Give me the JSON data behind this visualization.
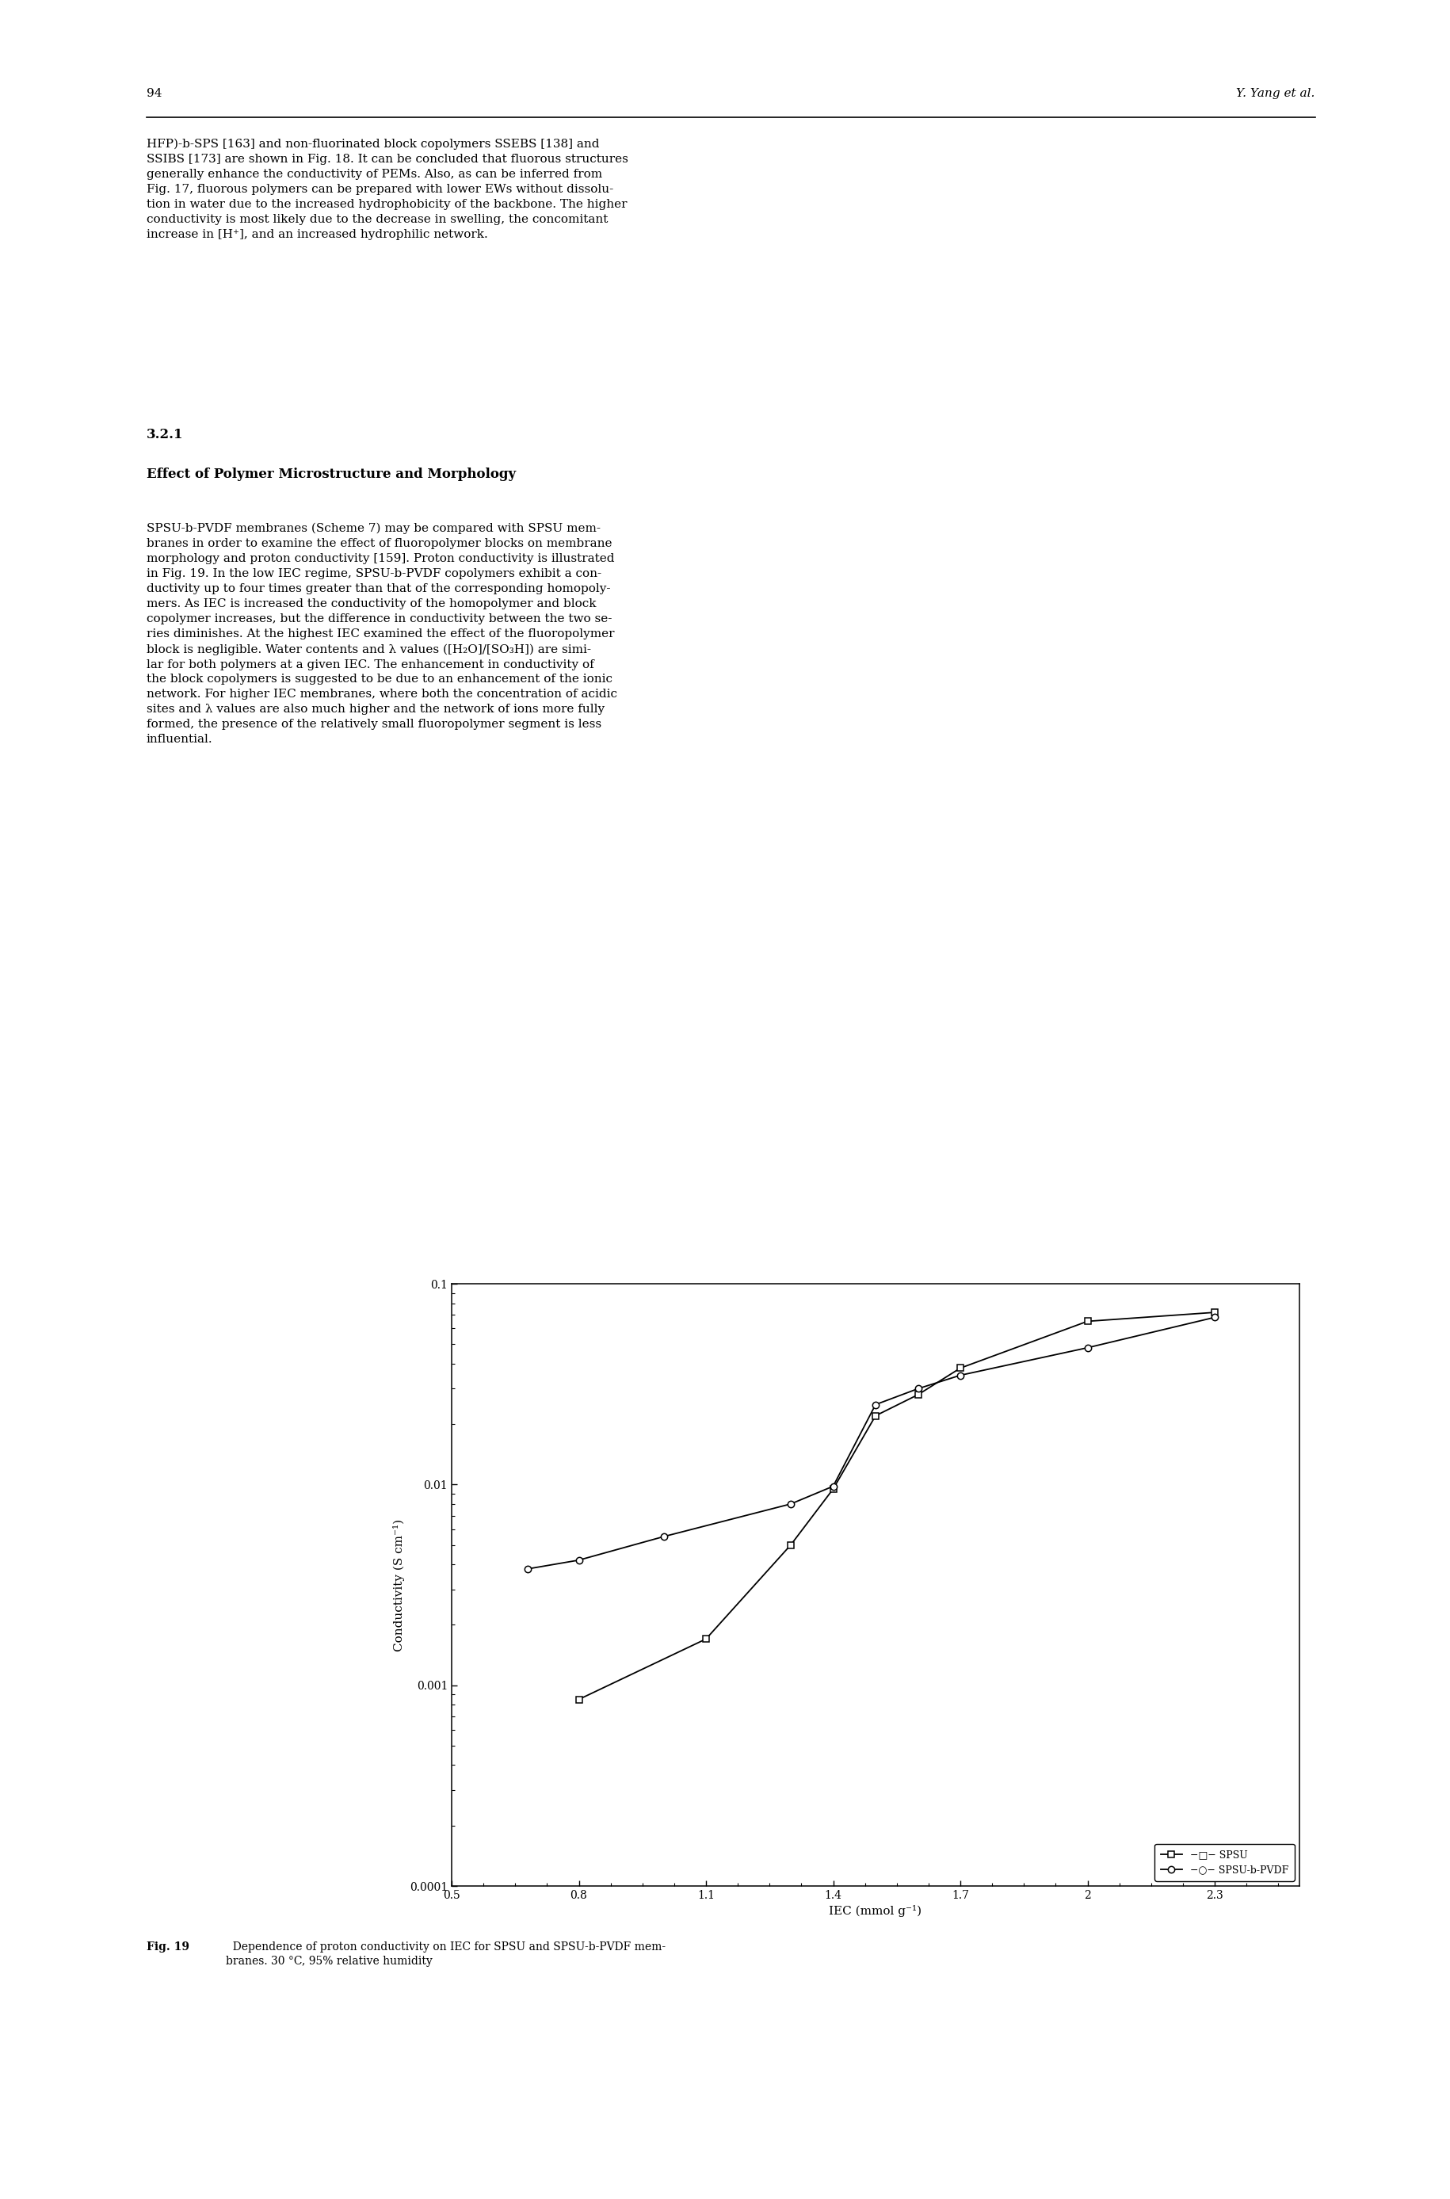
{
  "spsu_x": [
    0.8,
    1.1,
    1.3,
    1.4,
    1.5,
    1.6,
    1.7,
    2.0,
    2.3
  ],
  "spsu_y": [
    0.00085,
    0.0017,
    0.005,
    0.0095,
    0.022,
    0.028,
    0.038,
    0.065,
    0.072
  ],
  "spsu_b_pvdf_x": [
    0.68,
    0.8,
    1.0,
    1.3,
    1.4,
    1.5,
    1.6,
    1.7,
    2.0,
    2.3
  ],
  "spsu_b_pvdf_y": [
    0.0038,
    0.0042,
    0.0055,
    0.008,
    0.0098,
    0.025,
    0.03,
    0.035,
    0.048,
    0.068
  ],
  "xlabel": "IEC (mmol g⁻¹)",
  "ylabel": "Conductivity (S cm⁻¹)",
  "xlim": [
    0.5,
    2.5
  ],
  "ylim": [
    0.0001,
    0.1
  ],
  "xticks": [
    0.5,
    0.8,
    1.1,
    1.4,
    1.7,
    2.0,
    2.3
  ],
  "xtick_labels": [
    "0.5",
    "0.8",
    "1.1",
    "1.4",
    "1.7",
    "2",
    "2.3"
  ],
  "yticks": [
    0.0001,
    0.001,
    0.01,
    0.1
  ],
  "ytick_labels": [
    "0.0001",
    "0.001",
    "0.01",
    "0.1"
  ],
  "legend_spsu": "−□− SPSU",
  "legend_spsu_b_pvdf": "−○− SPSU-b-PVDF",
  "line_color": "black",
  "marker_size": 6,
  "line_width": 1.3,
  "font_size_axis_label": 11,
  "font_size_tick": 10,
  "font_size_legend": 9,
  "page_number": "94",
  "author": "Y. Yang et al.",
  "section_num": "3.2.1",
  "section_title": "Effect of Polymer Microstructure and Morphology",
  "para1": "HFP)-b-SPS [163] and non-fluorinated block copolymers SSEBS [138] and\nSSIBS [173] are shown in Fig. 18. It can be concluded that fluorous structures\ngenerally enhance the conductivity of PEMs. Also, as can be inferred from\nFig. 17, fluorous polymers can be prepared with lower EWs without dissolu-\ntion in water due to the increased hydrophobicity of the backbone. The higher\nconductivity is most likely due to the decrease in swelling, the concomitant\nincrease in [H⁺], and an increased hydrophilic network.",
  "para2": "SPSU-b-PVDF membranes (Scheme 7) may be compared with SPSU mem-\nbranes in order to examine the effect of fluoropolymer blocks on membrane\nmorphology and proton conductivity [159]. Proton conductivity is illustrated\nin Fig. 19. In the low IEC regime, SPSU-b-PVDF copolymers exhibit a con-\nductivity up to four times greater than that of the corresponding homopoly-\nmers. As IEC is increased the conductivity of the homopolymer and block\ncopolymer increases, but the difference in conductivity between the two se-\nries diminishes. At the highest IEC examined the effect of the fluoropolymer\nblock is negligible. Water contents and λ values ([H₂O]/[SO₃H]) are simi-\nlar for both polymers at a given IEC. The enhancement in conductivity of\nthe block copolymers is suggested to be due to an enhancement of the ionic\nnetwork. For higher IEC membranes, where both the concentration of acidic\nsites and λ values are also much higher and the network of ions more fully\nformed, the presence of the relatively small fluoropolymer segment is less\ninfluential.",
  "caption_bold": "Fig. 19",
  "caption_normal": "  Dependence of proton conductivity on IEC for SPSU and SPSU-b-PVDF mem-\nbranes. 30 °C, 95% relative humidity",
  "fig_font_size": 11,
  "body_font_size": 11,
  "caption_font_size": 10
}
